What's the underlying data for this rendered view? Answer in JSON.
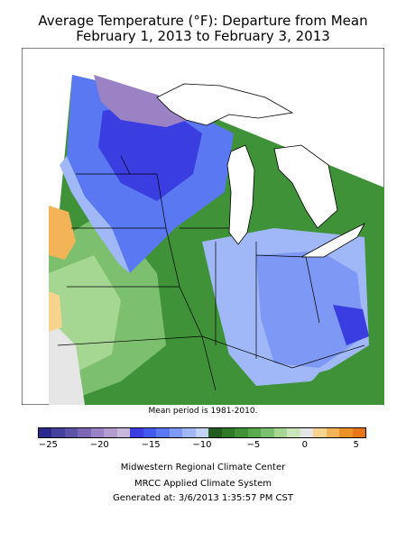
{
  "title_line1": "Average Temperature (°F): Departure from Mean",
  "title_line2": "February 1, 2013 to February 3, 2013",
  "mean_note": "Mean period is 1981-2010.",
  "legend": {
    "colors": [
      "#2b2a8a",
      "#45409c",
      "#5c52a8",
      "#7a68b6",
      "#9a82c4",
      "#b59ccf",
      "#c9b6dd",
      "#3a3de0",
      "#4258ee",
      "#5a78f2",
      "#7e98f5",
      "#a0b8f7",
      "#c3d4fb",
      "#235c1f",
      "#2f7a2a",
      "#3f9238",
      "#58aa4f",
      "#7cc06f",
      "#a5d692",
      "#c9e7b8",
      "#e6e6e6",
      "#f7d38e",
      "#f3b457",
      "#eb9227",
      "#e67617"
    ],
    "ticks": [
      {
        "label": "−25",
        "value": -25
      },
      {
        "label": "−20",
        "value": -20
      },
      {
        "label": "−15",
        "value": -15
      },
      {
        "label": "−10",
        "value": -10
      },
      {
        "label": "−5",
        "value": -5
      },
      {
        "label": "0",
        "value": 0
      },
      {
        "label": "5",
        "value": 5
      }
    ],
    "min": -26,
    "max": 6
  },
  "footer": {
    "line1": "Midwestern Regional Climate Center",
    "line2": "MRCC Applied Climate System",
    "line3": "Generated at: 3/6/2013 1:35:57 PM CST"
  }
}
